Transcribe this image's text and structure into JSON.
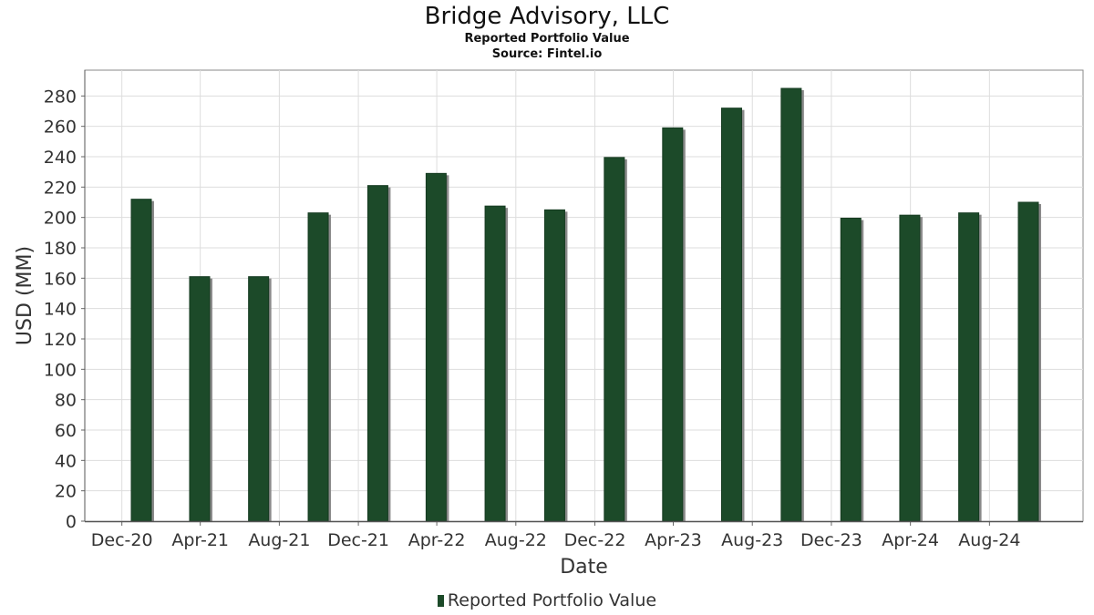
{
  "header": {
    "title": "Bridge Advisory, LLC",
    "subtitle": "Reported Portfolio Value",
    "source": "Source: Fintel.io"
  },
  "colors": {
    "bar": "#1c4a29",
    "bar_shadow": "#8a8a8a",
    "grid": "#dddddd",
    "plot_border": "#888888"
  },
  "chart_data": {
    "type": "bar",
    "title": "Bridge Advisory, LLC",
    "subtitle": "Reported Portfolio Value",
    "xlabel": "Date",
    "ylabel": "USD (MM)",
    "ylim": [
      0,
      297
    ],
    "yticks": [
      0,
      20,
      40,
      60,
      80,
      100,
      120,
      140,
      160,
      180,
      200,
      220,
      240,
      260,
      280
    ],
    "grid": true,
    "legend_position": "bottom-center",
    "x_tick_labels": [
      "Dec-20",
      "Apr-21",
      "Aug-21",
      "Dec-21",
      "Apr-22",
      "Aug-22",
      "Dec-22",
      "Apr-23",
      "Aug-23",
      "Dec-23",
      "Apr-24",
      "Aug-24"
    ],
    "x": [
      "2020-12-31",
      "2021-03-31",
      "2021-06-30",
      "2021-09-30",
      "2021-12-31",
      "2022-03-31",
      "2022-06-30",
      "2022-09-30",
      "2022-12-31",
      "2023-03-31",
      "2023-06-30",
      "2023-09-30",
      "2023-12-31",
      "2024-03-31",
      "2024-06-30",
      "2024-09-30"
    ],
    "series": [
      {
        "name": "Reported Portfolio Value",
        "values": [
          212,
          161,
          161,
          203,
          221,
          229,
          207.5,
          205,
          239.5,
          259,
          272,
          285,
          199.5,
          201.5,
          203,
          210
        ]
      }
    ]
  }
}
